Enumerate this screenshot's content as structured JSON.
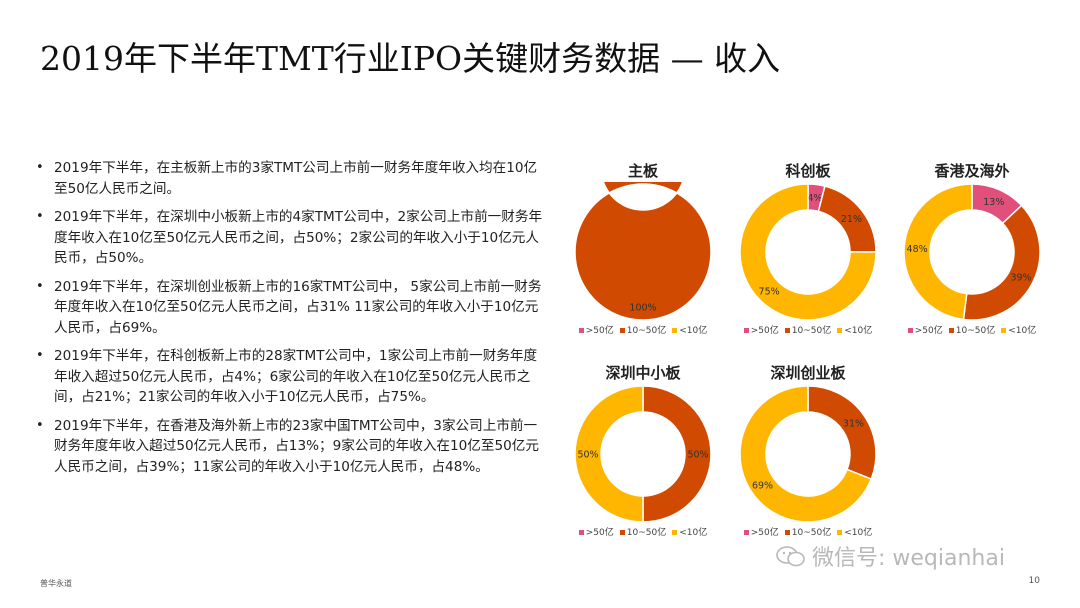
{
  "title": "2019年下半年TMT行业IPO关键财务数据 — 收入",
  "bullets": [
    "2019年下半年，在主板新上市的3家TMT公司上市前一财务年度年收入均在10亿至50亿人民币之间。",
    "2019年下半年，在深圳中小板新上市的4家TMT公司中，2家公司上市前一财务年度年收入在10亿至50亿元人民币之间，占50%；2家公司的年收入小于10亿元人民币，占50%。",
    "2019年下半年，在深圳创业板新上市的16家TMT公司中，  5家公司上市前一财务年度年收入在10亿至50亿元人民币之间，占31%  11家公司的年收入小于10亿元人民币，占69%。",
    "2019年下半年，在科创板新上市的28家TMT公司中，1家公司上市前一财务年度年收入超过50亿元人民币，占4%；6家公司的年收入在10亿至50亿元人民币之间，占21%；21家公司的年收入小于10亿元人民币，占75%。",
    "2019年下半年，在香港及海外新上市的23家中国TMT公司中，3家公司上市前一财务年度年收入超过50亿元人民币，占13%；9家公司的年收入在10亿至50亿元人民币之间，占39%；11家公司的年收入小于10亿元人民币，占48%。"
  ],
  "legend": [
    {
      "label": ">50亿",
      "color": "#e0507a"
    },
    {
      "label": "10~50亿",
      "color": "#d04a02"
    },
    {
      "label": "<10亿",
      "color": "#ffb600"
    }
  ],
  "chart_data": [
    {
      "type": "pie",
      "variant": "donut",
      "title": "主板",
      "categories": [
        ">50亿",
        "10~50亿",
        "<10亿"
      ],
      "values": [
        0,
        100,
        0
      ],
      "labels": [
        "",
        "100%",
        ""
      ]
    },
    {
      "type": "pie",
      "variant": "donut",
      "title": "科创板",
      "categories": [
        ">50亿",
        "10~50亿",
        "<10亿"
      ],
      "values": [
        4,
        21,
        75
      ],
      "labels": [
        "4%",
        "21%",
        "75%"
      ]
    },
    {
      "type": "pie",
      "variant": "donut",
      "title": "香港及海外",
      "categories": [
        ">50亿",
        "10~50亿",
        "<10亿"
      ],
      "values": [
        13,
        39,
        48
      ],
      "labels": [
        "13%",
        "39%",
        "48%"
      ]
    },
    {
      "type": "pie",
      "variant": "donut",
      "title": "深圳中小板",
      "categories": [
        ">50亿",
        "10~50亿",
        "<10亿"
      ],
      "values": [
        0,
        50,
        50
      ],
      "labels": [
        "",
        "50%",
        "50%"
      ]
    },
    {
      "type": "pie",
      "variant": "donut",
      "title": "深圳创业板",
      "categories": [
        ">50亿",
        "10~50亿",
        "<10亿"
      ],
      "values": [
        0,
        31,
        69
      ],
      "labels": [
        "",
        "31%",
        "69%"
      ]
    }
  ],
  "footer": {
    "source": "普华永道",
    "page": "10"
  },
  "watermark": "微信号: weqianhai"
}
